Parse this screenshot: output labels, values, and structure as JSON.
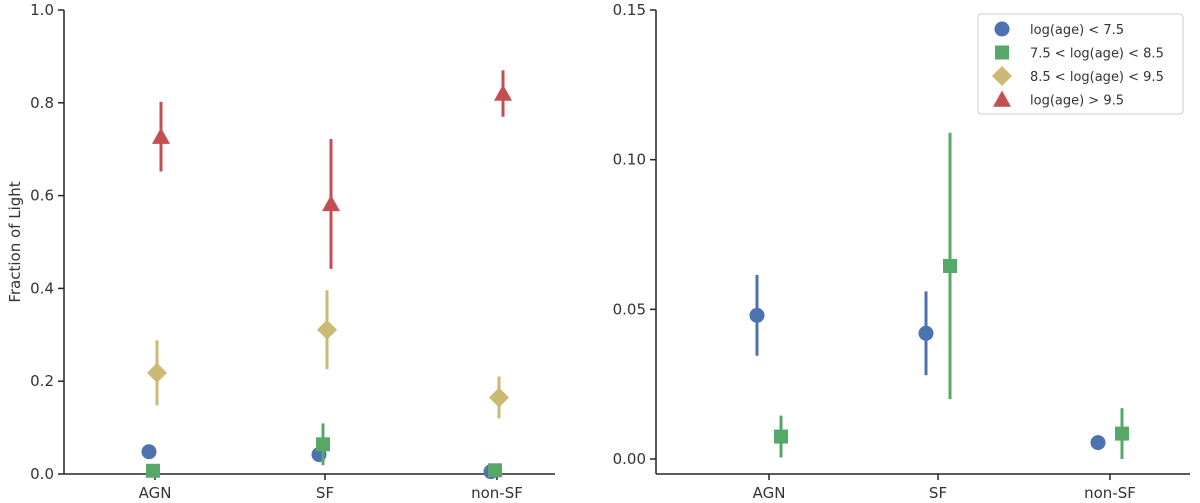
{
  "chart_data": [
    {
      "type": "scatter",
      "title": "",
      "xlabel": "",
      "ylabel": "Fraction of Light",
      "categories": [
        "AGN",
        "SF",
        "non-SF"
      ],
      "ylim": [
        0,
        1.0
      ],
      "yticks": [
        "0.0",
        "0.2",
        "0.4",
        "0.6",
        "0.8",
        "1.0"
      ],
      "series": [
        {
          "name": "log(age) < 7.5",
          "color": "#4c72b0",
          "marker": "circle",
          "values": [
            0.048,
            0.042,
            0.005
          ],
          "errors": [
            0.013,
            0.014,
            0.003
          ]
        },
        {
          "name": "7.5 < log(age) < 8.5",
          "color": "#55a868",
          "marker": "square",
          "values": [
            0.007,
            0.064,
            0.008
          ],
          "errors": [
            0.007,
            0.045,
            0.008
          ]
        },
        {
          "name": "8.5 < log(age) < 9.5",
          "color": "#ccb974",
          "marker": "diamond",
          "values": [
            0.218,
            0.311,
            0.165
          ],
          "errors": [
            0.07,
            0.085,
            0.045
          ]
        },
        {
          "name": "log(age) > 9.5",
          "color": "#c44e52",
          "marker": "triangle",
          "values": [
            0.727,
            0.582,
            0.82
          ],
          "errors": [
            0.075,
            0.14,
            0.05
          ]
        }
      ]
    },
    {
      "type": "scatter",
      "title": "",
      "xlabel": "",
      "ylabel": "",
      "categories": [
        "AGN",
        "SF",
        "non-SF"
      ],
      "ylim": [
        -0.005,
        0.15
      ],
      "yticks": [
        "0.00",
        "0.05",
        "0.10",
        "0.15"
      ],
      "legend_position": "top-right",
      "legend": [
        "log(age) < 7.5",
        "7.5 < log(age) < 8.5",
        "8.5 < log(age) < 9.5",
        "log(age) > 9.5"
      ],
      "series": [
        {
          "name": "log(age) < 7.5",
          "color": "#4c72b0",
          "marker": "circle",
          "values": [
            0.048,
            0.042,
            0.0055
          ],
          "errors": [
            0.0135,
            0.014,
            0.002
          ]
        },
        {
          "name": "7.5 < log(age) < 8.5",
          "color": "#55a868",
          "marker": "square",
          "values": [
            0.0075,
            0.0645,
            0.0085
          ],
          "errors": [
            0.007,
            0.0445,
            0.0085
          ]
        }
      ]
    }
  ]
}
